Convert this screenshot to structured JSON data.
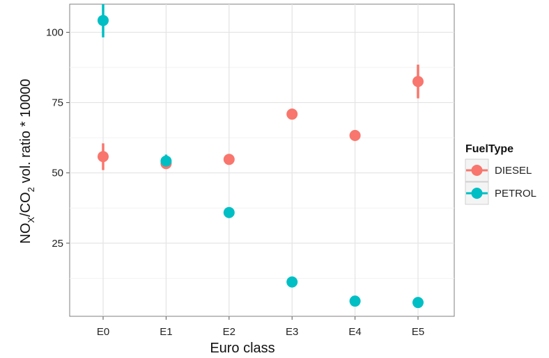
{
  "chart_data": {
    "type": "scatter",
    "title": "",
    "xlabel": "Euro class",
    "ylabel_parts": {
      "no": "NO",
      "x_sub": "X",
      "slash_co": "/CO",
      "two_sub": "2",
      "rest": " vol. ratio * 10000"
    },
    "categories": [
      "E0",
      "E1",
      "E2",
      "E3",
      "E4",
      "E5"
    ],
    "ylim": [
      -1,
      110
    ],
    "yticks": [
      25,
      50,
      75,
      100
    ],
    "grid": true,
    "legend_position": "right",
    "legend_title": "FuelType",
    "series": [
      {
        "name": "DIESEL",
        "color": "#F8766D",
        "values": [
          55.8,
          53.3,
          54.8,
          70.9,
          63.3,
          82.5
        ],
        "lower": [
          51.0,
          51.5,
          54.8,
          70.9,
          63.3,
          76.5
        ],
        "upper": [
          60.5,
          55.5,
          54.8,
          70.9,
          63.3,
          88.5
        ]
      },
      {
        "name": "PETROL",
        "color": "#00BFC4",
        "values": [
          104.2,
          54.2,
          35.9,
          11.2,
          4.4,
          3.9
        ],
        "lower": [
          98.2,
          52.5,
          35.9,
          11.2,
          4.4,
          3.0
        ],
        "upper": [
          110.0,
          56.5,
          35.9,
          11.2,
          4.4,
          4.5
        ]
      }
    ]
  }
}
